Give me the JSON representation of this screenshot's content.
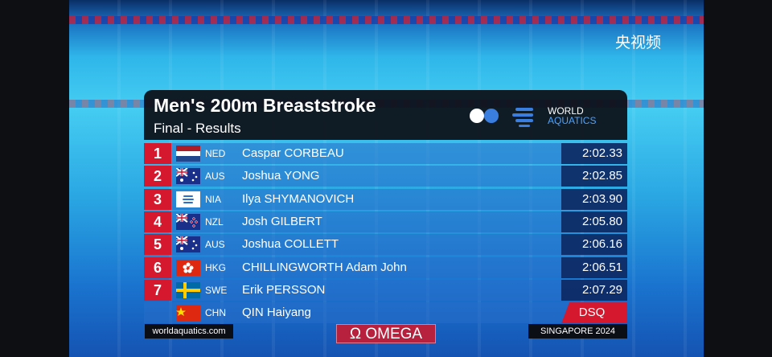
{
  "watermark": "央视频",
  "header": {
    "title": "Men's 200m Breaststroke",
    "subtitle": "Final - Results",
    "logo_lines": [
      "WORLD",
      "AQUATICS"
    ]
  },
  "rows": [
    {
      "rank": 1,
      "code": "NED",
      "name": "Caspar CORBEAU",
      "time": "2:02.33"
    },
    {
      "rank": 2,
      "code": "AUS",
      "name": "Joshua YONG",
      "time": "2:02.85"
    },
    {
      "rank": 3,
      "code": "NIA",
      "name": "Ilya SHYMANOVICH",
      "time": "2:03.90"
    },
    {
      "rank": 4,
      "code": "NZL",
      "name": "Josh GILBERT",
      "time": "2:05.80"
    },
    {
      "rank": 5,
      "code": "AUS",
      "name": "Joshua COLLETT",
      "time": "2:06.16"
    },
    {
      "rank": 6,
      "code": "HKG",
      "name": "CHILLINGWORTH Adam John",
      "time": "2:06.51"
    },
    {
      "rank": 7,
      "code": "SWE",
      "name": "Erik PERSSON",
      "time": "2:07.29"
    },
    {
      "code": "CHN",
      "name": "QIN Haiyang",
      "time": "DSQ"
    }
  ],
  "footer": {
    "website": "worldaquatics.com",
    "sponsor_mark": "Ω",
    "sponsor": "OMEGA",
    "event": "SINGAPORE 2024"
  }
}
